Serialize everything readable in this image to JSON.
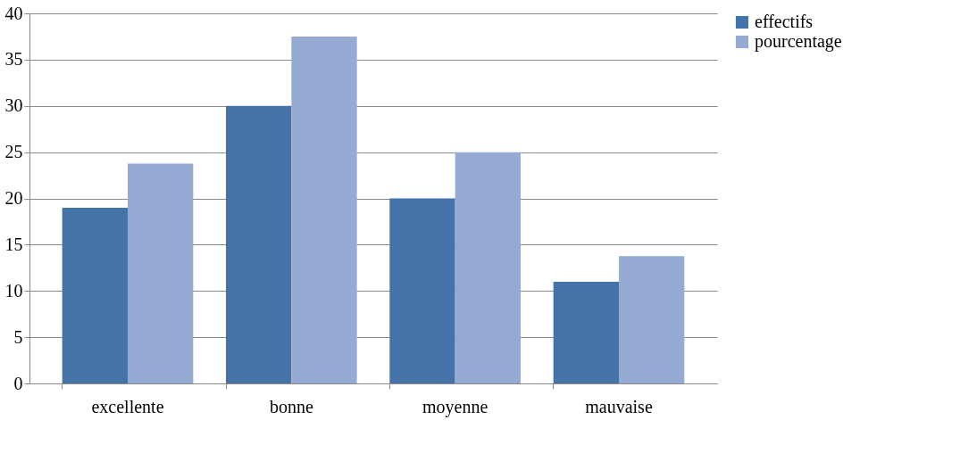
{
  "chart_data": {
    "type": "bar",
    "categories": [
      "excellente",
      "bonne",
      "moyenne",
      "mauvaise"
    ],
    "series": [
      {
        "name": "effectifs",
        "color": "#4573a7",
        "values": [
          19,
          30,
          20,
          11
        ]
      },
      {
        "name": "pourcentage",
        "color": "#95abd3",
        "values": [
          23.75,
          37.5,
          25,
          13.75
        ]
      }
    ],
    "ylim": [
      0,
      40
    ],
    "yticks": [
      0,
      5,
      10,
      15,
      20,
      25,
      30,
      35,
      40
    ],
    "grid": "y",
    "legend": "right"
  }
}
